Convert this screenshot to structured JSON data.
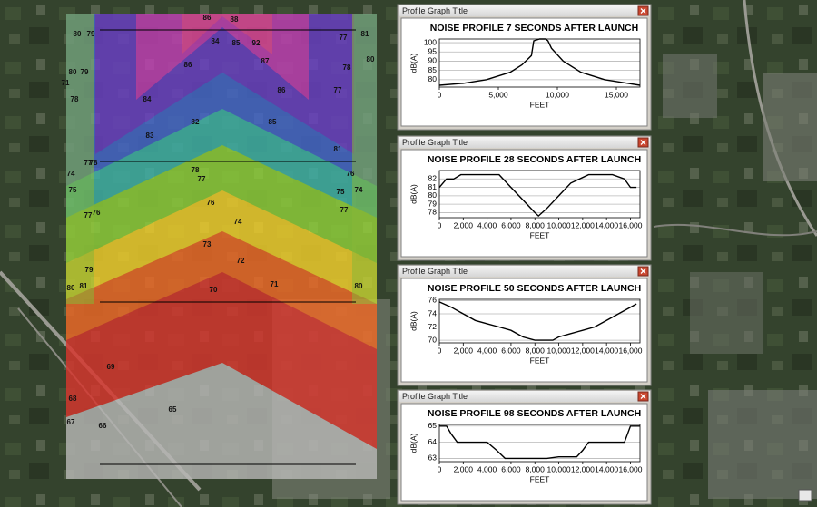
{
  "windows": [
    {
      "title": "Profile Graph Title"
    },
    {
      "title": "Profile Graph Title"
    },
    {
      "title": "Profile Graph Title"
    },
    {
      "title": "Profile Graph Title"
    }
  ],
  "chart_data": [
    {
      "type": "line",
      "title": "NOISE PROFILE 7 SECONDS AFTER LAUNCH",
      "x_label": "FEET",
      "y_label": "dB(A)",
      "color": "#000000",
      "grid": true,
      "x": [
        0,
        2000,
        4000,
        6000,
        7000,
        7800,
        8000,
        8500,
        9000,
        9200,
        9500,
        10500,
        12000,
        14000,
        16000,
        17000
      ],
      "values": [
        77,
        78,
        80,
        84,
        88,
        93,
        101,
        102,
        102,
        101,
        97,
        90,
        84,
        80,
        78,
        77
      ],
      "xlim": [
        0,
        17000
      ],
      "ylim": [
        76,
        102
      ],
      "xticks": [
        0,
        {
          "value": 5000,
          "label": "5,000"
        },
        {
          "value": 10000,
          "label": "10,000"
        },
        {
          "value": 15000,
          "label": "15,000"
        }
      ],
      "yticks": [
        80,
        85,
        90,
        95,
        100
      ]
    },
    {
      "type": "line",
      "title": "NOISE PROFILE 28 SECONDS AFTER LAUNCH",
      "x_label": "FEET",
      "y_label": "dB(A)",
      "color": "#000000",
      "grid": true,
      "x": [
        0,
        600,
        1200,
        1800,
        5000,
        6000,
        7000,
        8000,
        8300,
        9000,
        10000,
        11000,
        12500,
        14500,
        15500,
        16000,
        16500
      ],
      "values": [
        81,
        82,
        82,
        82.5,
        82.5,
        81,
        79.5,
        78,
        77.6,
        78.5,
        80,
        81.5,
        82.5,
        82.5,
        82,
        81,
        81
      ],
      "xlim": [
        0,
        16800
      ],
      "ylim": [
        77.4,
        83
      ],
      "xticks": [
        0,
        {
          "value": 2000,
          "label": "2,000"
        },
        {
          "value": 4000,
          "label": "4,000"
        },
        {
          "value": 6000,
          "label": "6,000"
        },
        {
          "value": 8000,
          "label": "8,000"
        },
        {
          "value": 10000,
          "label": "10,000"
        },
        {
          "value": 12000,
          "label": "12,000"
        },
        {
          "value": 14000,
          "label": "14,000"
        },
        {
          "value": 16000,
          "label": "16,000"
        }
      ],
      "yticks": [
        78,
        79,
        80,
        81,
        82
      ]
    },
    {
      "type": "line",
      "title": "NOISE PROFILE 50 SECONDS AFTER LAUNCH",
      "x_label": "FEET",
      "y_label": "dB(A)",
      "color": "#000000",
      "grid": true,
      "x": [
        0,
        1000,
        2000,
        3000,
        4000,
        5000,
        6000,
        7000,
        8000,
        9500,
        10000,
        11000,
        12000,
        13000,
        14000,
        15000,
        16000,
        16500
      ],
      "values": [
        75.8,
        75,
        74,
        73,
        72.5,
        72,
        71.5,
        70.5,
        70,
        70,
        70.5,
        71,
        71.5,
        72,
        73,
        74,
        75,
        75.5
      ],
      "xlim": [
        0,
        16800
      ],
      "ylim": [
        69.6,
        76.2
      ],
      "xticks": [
        0,
        {
          "value": 2000,
          "label": "2,000"
        },
        {
          "value": 4000,
          "label": "4,000"
        },
        {
          "value": 6000,
          "label": "6,000"
        },
        {
          "value": 8000,
          "label": "8,000"
        },
        {
          "value": 10000,
          "label": "10,000"
        },
        {
          "value": 12000,
          "label": "12,000"
        },
        {
          "value": 14000,
          "label": "14,000"
        },
        {
          "value": 16000,
          "label": "16,000"
        }
      ],
      "yticks": [
        70,
        72,
        74,
        76
      ]
    },
    {
      "type": "line",
      "title": "NOISE PROFILE 98 SECONDS AFTER LAUNCH",
      "x_label": "FEET",
      "y_label": "dB(A)",
      "color": "#000000",
      "grid": true,
      "x": [
        0,
        600,
        1000,
        1500,
        3000,
        4000,
        4800,
        5500,
        8000,
        9000,
        10000,
        11500,
        12000,
        12500,
        15500,
        16000,
        16800
      ],
      "values": [
        65,
        65,
        64.5,
        64,
        64,
        64,
        63.5,
        63,
        63,
        63,
        63.1,
        63.1,
        63.5,
        64,
        64,
        65,
        65
      ],
      "xlim": [
        0,
        16800
      ],
      "ylim": [
        62.8,
        65.1
      ],
      "xticks": [
        0,
        {
          "value": 2000,
          "label": "2,000"
        },
        {
          "value": 4000,
          "label": "4,000"
        },
        {
          "value": 6000,
          "label": "6,000"
        },
        {
          "value": 8000,
          "label": "8,000"
        },
        {
          "value": 10000,
          "label": "10,000"
        },
        {
          "value": 12000,
          "label": "12,000"
        },
        {
          "value": 14000,
          "label": "14,000"
        },
        {
          "value": 16000,
          "label": "16,000"
        }
      ],
      "yticks": [
        63,
        64,
        65
      ]
    }
  ],
  "map_labels": [
    "80",
    "79",
    "80",
    "79",
    "71",
    "78",
    "74",
    "75",
    "77",
    "78",
    "77",
    "76",
    "79",
    "80",
    "81",
    "83",
    "82",
    "84",
    "86",
    "86",
    "88",
    "85",
    "84",
    "92",
    "87",
    "86",
    "85",
    "81",
    "77",
    "77",
    "78",
    "76",
    "75",
    "74",
    "77",
    "80",
    "78",
    "77",
    "76",
    "74",
    "73",
    "72",
    "71",
    "70",
    "69",
    "68",
    "67",
    "66",
    "65",
    "81",
    "80"
  ]
}
